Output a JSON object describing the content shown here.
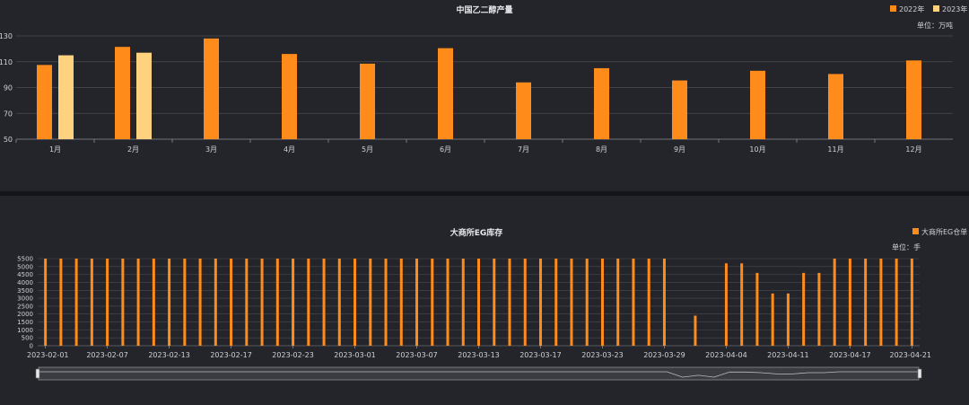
{
  "charts": [
    {
      "title": "中国乙二醇产量",
      "unit": "单位：万吨",
      "legend": [
        {
          "name": "2022年",
          "color": "#ff8c1a"
        },
        {
          "name": "2023年",
          "color": "#ffd27f"
        }
      ]
    },
    {
      "title": "大商所EG库存",
      "unit": "单位：手",
      "legend": [
        {
          "name": "大商所EG仓单",
          "color": "#ff8c1a"
        }
      ]
    }
  ],
  "chart_data": [
    {
      "type": "bar",
      "title": "中国乙二醇产量",
      "ylabel": "单位：万吨",
      "categories": [
        "1月",
        "2月",
        "3月",
        "4月",
        "5月",
        "6月",
        "7月",
        "8月",
        "9月",
        "10月",
        "11月",
        "12月"
      ],
      "series": [
        {
          "name": "2022年",
          "values": [
            107.5,
            121.5,
            128,
            116,
            108.5,
            120.5,
            94,
            105,
            95.5,
            103,
            100.5,
            111
          ],
          "color": "#ff8c1a"
        },
        {
          "name": "2023年",
          "values": [
            115,
            117,
            null,
            null,
            null,
            null,
            null,
            null,
            null,
            null,
            null,
            null
          ],
          "color": "#ffd27f"
        }
      ],
      "ylim": [
        50,
        130
      ],
      "yticks": [
        50,
        70,
        90,
        110,
        130
      ],
      "grid": true,
      "legend_position": "top-right"
    },
    {
      "type": "bar",
      "title": "大商所EG库存",
      "ylabel": "单位：手",
      "categories": [
        "2023-02-01",
        "2023-02-02",
        "2023-02-03",
        "2023-02-06",
        "2023-02-07",
        "2023-02-08",
        "2023-02-09",
        "2023-02-10",
        "2023-02-13",
        "2023-02-14",
        "2023-02-15",
        "2023-02-16",
        "2023-02-17",
        "2023-02-20",
        "2023-02-21",
        "2023-02-22",
        "2023-02-23",
        "2023-02-24",
        "2023-02-27",
        "2023-02-28",
        "2023-03-01",
        "2023-03-02",
        "2023-03-03",
        "2023-03-06",
        "2023-03-07",
        "2023-03-08",
        "2023-03-09",
        "2023-03-10",
        "2023-03-13",
        "2023-03-14",
        "2023-03-15",
        "2023-03-16",
        "2023-03-17",
        "2023-03-20",
        "2023-03-21",
        "2023-03-22",
        "2023-03-23",
        "2023-03-24",
        "2023-03-27",
        "2023-03-28",
        "2023-03-29",
        "2023-03-30",
        "2023-03-31",
        "2023-04-03",
        "2023-04-04",
        "2023-04-06",
        "2023-04-07",
        "2023-04-10",
        "2023-04-11",
        "2023-04-12",
        "2023-04-13",
        "2023-04-14",
        "2023-04-17",
        "2023-04-18",
        "2023-04-19",
        "2023-04-20",
        "2023-04-21"
      ],
      "xtick_labels": [
        "2023-02-01",
        "2023-02-07",
        "2023-02-13",
        "2023-02-17",
        "2023-02-23",
        "2023-03-01",
        "2023-03-07",
        "2023-03-13",
        "2023-03-17",
        "2023-03-23",
        "2023-03-29",
        "2023-04-04",
        "2023-04-11",
        "2023-04-17",
        "2023-04-21"
      ],
      "series": [
        {
          "name": "大商所EG仓单",
          "color": "#ff8c1a",
          "values": [
            5500,
            5500,
            5500,
            5500,
            5500,
            5500,
            5500,
            5500,
            5500,
            5500,
            5500,
            5500,
            5500,
            5500,
            5500,
            5500,
            5500,
            5500,
            5500,
            5500,
            5500,
            5500,
            5500,
            5500,
            5500,
            5500,
            5500,
            5500,
            5500,
            5500,
            5500,
            5500,
            5500,
            5500,
            5500,
            5500,
            5500,
            5500,
            5500,
            5500,
            5500,
            0,
            1900,
            0,
            5200,
            5200,
            4600,
            3300,
            3300,
            4600,
            4600,
            5500,
            5500,
            5500,
            5500,
            5500,
            5500
          ]
        }
      ],
      "ylim": [
        0,
        5500
      ],
      "yticks": [
        0,
        500,
        1000,
        1500,
        2000,
        2500,
        3000,
        3500,
        4000,
        4500,
        5000,
        5500
      ],
      "grid": true,
      "legend_position": "top-right",
      "datazoom": true
    }
  ]
}
